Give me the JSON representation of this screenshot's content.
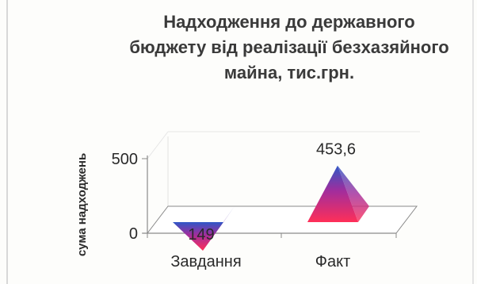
{
  "chart_data": {
    "type": "bar",
    "shape": "pyramid-3d",
    "title": "Надходження  до державного\nбюджету від реалізації безхазяйного\nмайна, тис.грн.",
    "xlabel": "",
    "ylabel": "сума надходжень",
    "categories": [
      "Завдання",
      "Факт"
    ],
    "values": [
      149,
      453.6
    ],
    "data_labels": [
      "149",
      "453,6"
    ],
    "yticks": [
      "0",
      "500"
    ],
    "ylim": [
      0,
      500
    ],
    "grid": false,
    "legend": "none",
    "colors": {
      "pyramid_top": "#2f57c6",
      "pyramid_mid": "#a22d9c",
      "pyramid_base": "#ff2f58",
      "floor": "#ffffff",
      "axis": "#8a8a8a"
    }
  }
}
